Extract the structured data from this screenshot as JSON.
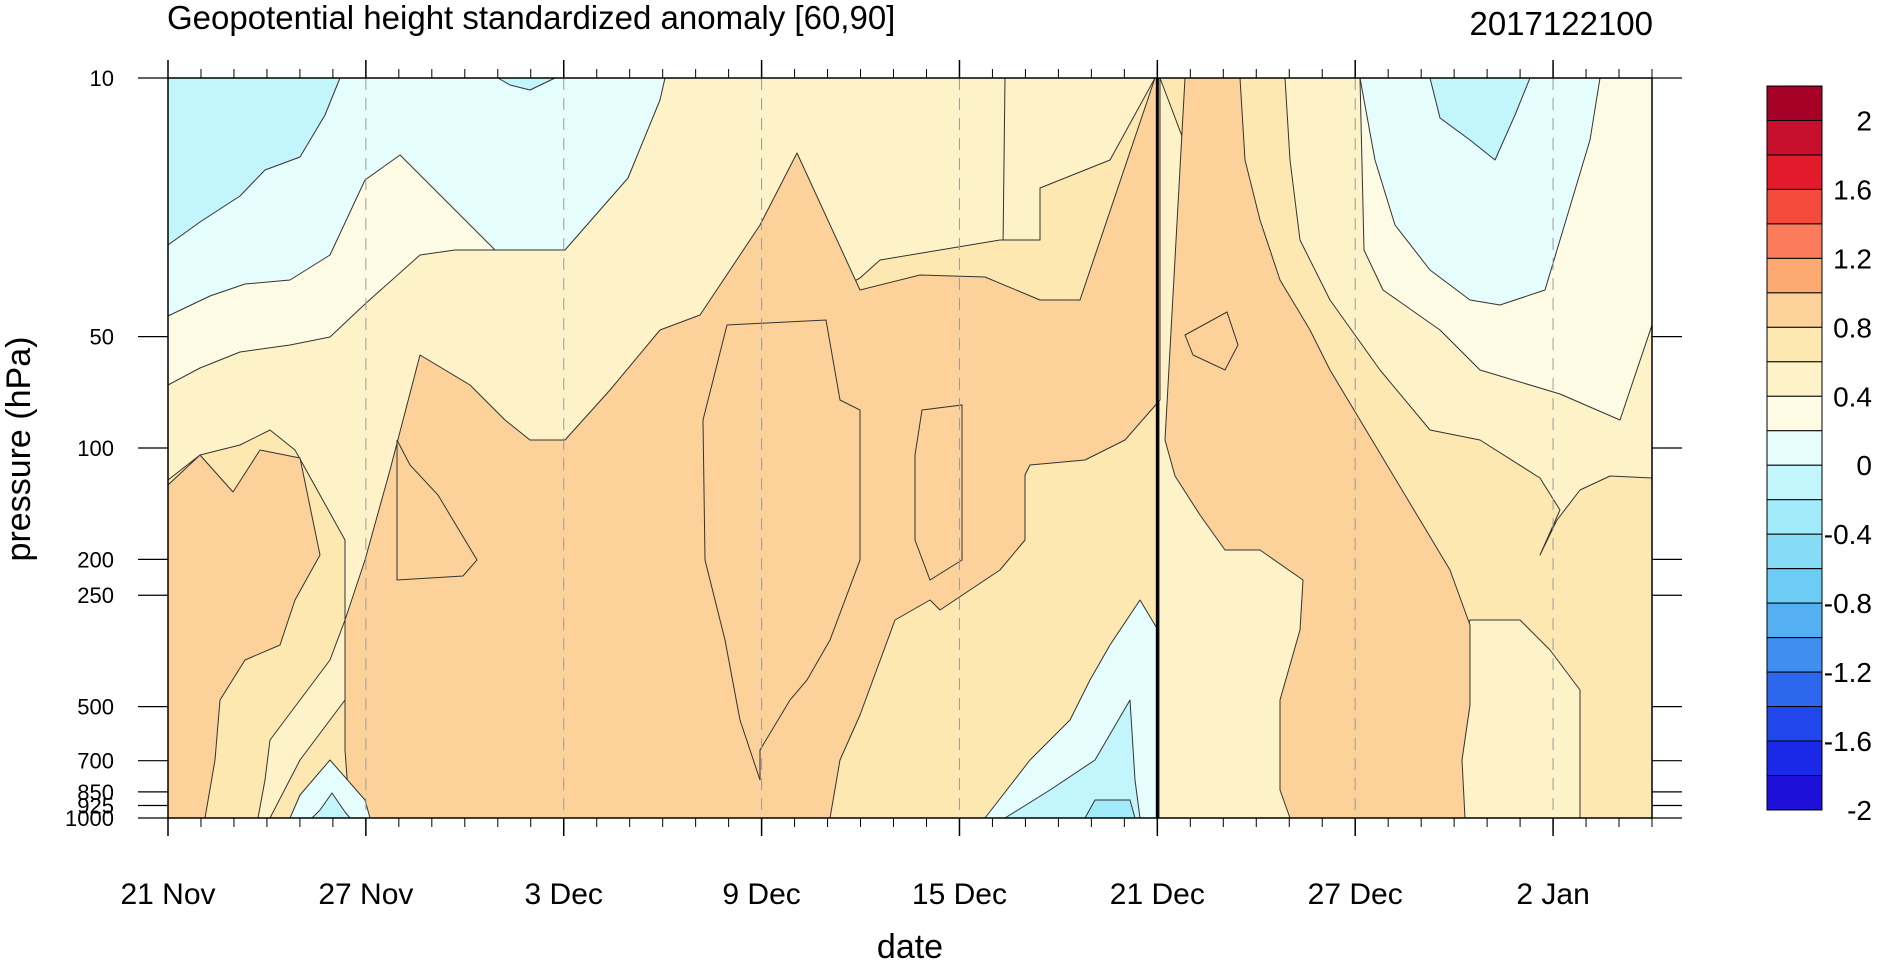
{
  "chart_data": {
    "type": "heatmap",
    "subtype": "filled-contour time-pressure section",
    "title": "Geopotential height standardized anomaly [60,90]",
    "date_label": "2017122100",
    "xlabel": "date",
    "ylabel": "pressure (hPa)",
    "x_start": "21 Nov",
    "x_end_day_offset": 45,
    "x_ticks": [
      {
        "day": 0,
        "label": "21 Nov"
      },
      {
        "day": 6,
        "label": "27 Nov"
      },
      {
        "day": 12,
        "label": "3 Dec"
      },
      {
        "day": 18,
        "label": "9 Dec"
      },
      {
        "day": 24,
        "label": "15 Dec"
      },
      {
        "day": 30,
        "label": "21 Dec"
      },
      {
        "day": 36,
        "label": "27 Dec"
      },
      {
        "day": 42,
        "label": "2 Jan"
      }
    ],
    "current_date_marker_day": 30,
    "y_scale": "log",
    "y_range": [
      1000,
      10
    ],
    "y_ticks": [
      "10",
      "50",
      "100",
      "200",
      "250",
      "500",
      "700",
      "850",
      "925",
      "1000"
    ],
    "y_tick_values": [
      10,
      50,
      100,
      200,
      250,
      500,
      700,
      850,
      925,
      1000
    ],
    "grid": "dashed vertical lines at labeled dates",
    "colorbar": {
      "placement": "right",
      "labels": [
        "2",
        "1.6",
        "1.2",
        "0.8",
        "0.4",
        "0",
        "-0.4",
        "-0.8",
        "-1.2",
        "-1.6",
        "-2"
      ],
      "colors_top_to_bottom": [
        "#a50026",
        "#c8102e",
        "#e31a2b",
        "#f44b3c",
        "#fb7b5a",
        "#fdaa72",
        "#fcd29a",
        "#fce8b0",
        "#fdf2c8",
        "#fefbe4",
        "#e6fdfe",
        "#c2f5fc",
        "#a1ebfa",
        "#86dcf7",
        "#6cccf5",
        "#55b0f3",
        "#3f8ef0",
        "#2d67ee",
        "#2047ec",
        "#1a28e8",
        "#1e10d8"
      ]
    },
    "levels": [
      {
        "range": "0 to 0.2",
        "color": "#fefbe4"
      },
      {
        "range": "0.2 to 0.4",
        "color": "#fdf2c8"
      },
      {
        "range": "0.4 to 0.6",
        "color": "#fce8b0"
      },
      {
        "range": "0.6 to 0.8",
        "color": "#fcd29a"
      },
      {
        "range": "-0.2 to 0",
        "color": "#e6fdfe"
      },
      {
        "range": "-0.4 to -0.2",
        "color": "#c2f5fc"
      },
      {
        "range": "-0.6 to -0.4",
        "color": "#a1ebfa"
      },
      {
        "range": "-0.8 to -0.6",
        "color": "#86dcf7"
      }
    ]
  }
}
